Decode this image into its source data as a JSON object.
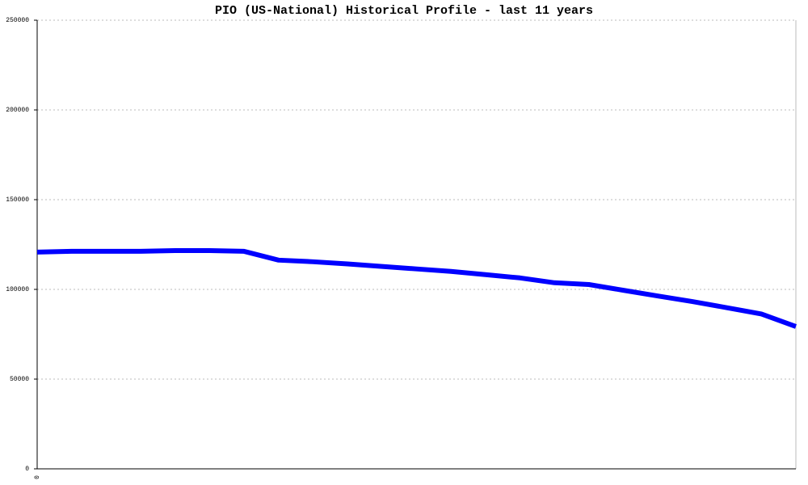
{
  "chart_data": {
    "type": "line",
    "title": "PIO (US-National) Historical Profile - last 11 years",
    "categories": [
      "0",
      null,
      null,
      null,
      null,
      null,
      null,
      null,
      null,
      null,
      null,
      null,
      null,
      null,
      null,
      null,
      null,
      null,
      null,
      null,
      null,
      null,
      null
    ],
    "series": [
      {
        "name": "PIO",
        "color": "#0000ff",
        "values": [
          120800,
          121200,
          121200,
          121200,
          121600,
          121600,
          121200,
          116300,
          115400,
          114200,
          112800,
          111400,
          110000,
          108200,
          106400,
          103700,
          102700,
          99500,
          96300,
          93200,
          89800,
          86300,
          79300
        ]
      }
    ],
    "ylim": [
      0,
      250000
    ],
    "yticks": [
      0,
      50000,
      100000,
      150000,
      200000,
      250000
    ],
    "grid": true
  }
}
